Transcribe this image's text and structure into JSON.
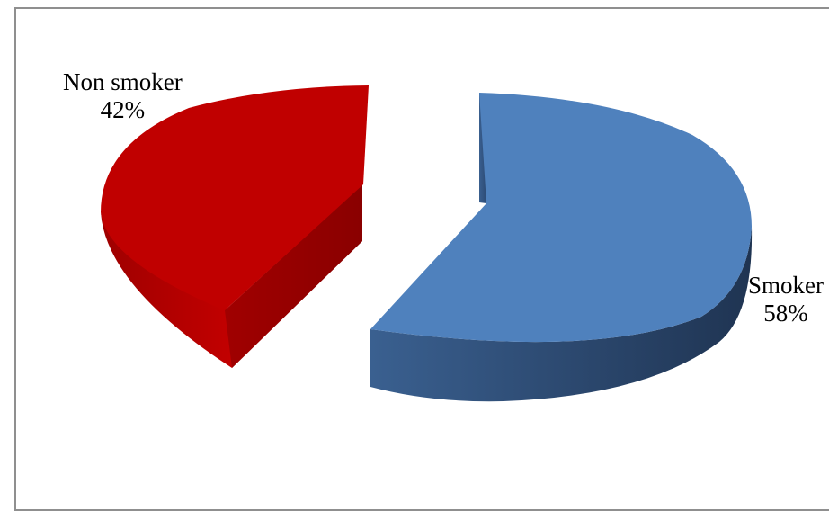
{
  "chart_data": {
    "type": "pie",
    "title": "",
    "slices": [
      {
        "label": "Non smoker",
        "percent_label": "42%",
        "value": 42,
        "color": "#c00000"
      },
      {
        "label": "Smoker",
        "percent_label": "58%",
        "value": 58,
        "color": "#4f81bd"
      }
    ]
  }
}
